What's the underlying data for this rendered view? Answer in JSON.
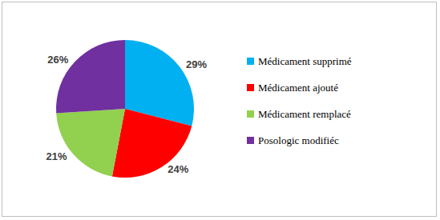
{
  "chart_data": {
    "type": "pie",
    "categories": [
      "Médicament supprimé",
      "Médicament ajouté",
      "Médicament remplacé",
      "Posologic modifiéc"
    ],
    "values": [
      29,
      24,
      21,
      26
    ],
    "value_labels": [
      "29%",
      "24%",
      "21%",
      "26%"
    ],
    "colors": [
      "#00b0f0",
      "#ff0000",
      "#92d050",
      "#7030a0"
    ],
    "data_labels": true,
    "legend": "right"
  }
}
